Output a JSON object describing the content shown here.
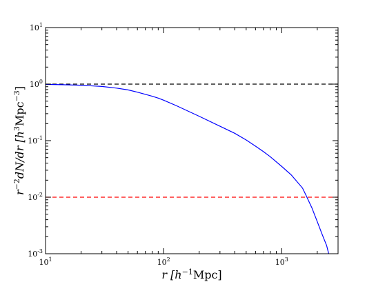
{
  "chart_data": {
    "type": "line",
    "xlabel": {
      "main": "r [h",
      "sup": "−1",
      "tail": "Mpc]"
    },
    "ylabel": {
      "main": "r",
      "sup1": "−2",
      "mid": "dN/dr [h",
      "sup2": "3",
      "mid2": "Mpc",
      "sup3": "−3",
      "tail": "]"
    },
    "xscale": "log",
    "yscale": "log",
    "xlim": [
      10,
      3000
    ],
    "ylim": [
      0.001,
      10
    ],
    "grid": false,
    "xticks": [
      {
        "value": 10,
        "base": "10",
        "exp": "1"
      },
      {
        "value": 100,
        "base": "10",
        "exp": "2"
      },
      {
        "value": 1000,
        "base": "10",
        "exp": "3"
      }
    ],
    "yticks": [
      {
        "value": 0.001,
        "base": "10",
        "exp": "-3"
      },
      {
        "value": 0.01,
        "base": "10",
        "exp": "-2"
      },
      {
        "value": 0.1,
        "base": "10",
        "exp": "-1"
      },
      {
        "value": 1,
        "base": "10",
        "exp": "0"
      },
      {
        "value": 10,
        "base": "10",
        "exp": "1"
      }
    ],
    "series": [
      {
        "color": "#0000ff",
        "style": "solid",
        "x": [
          10,
          14,
          20,
          30,
          40,
          50,
          60,
          70,
          80,
          90,
          100,
          130,
          200,
          300,
          400,
          500,
          600,
          700,
          800,
          1000,
          1200,
          1500,
          1600,
          1800,
          2000,
          2200,
          2400,
          2500
        ],
        "y": [
          0.99,
          0.975,
          0.955,
          0.91,
          0.85,
          0.79,
          0.72,
          0.66,
          0.61,
          0.565,
          0.52,
          0.41,
          0.27,
          0.18,
          0.135,
          0.103,
          0.08,
          0.064,
          0.052,
          0.035,
          0.025,
          0.0145,
          0.011,
          0.0065,
          0.0037,
          0.0022,
          0.0014,
          0.001
        ]
      }
    ],
    "hlines": [
      {
        "y": 1,
        "color": "#000000",
        "style": "dashed"
      },
      {
        "y": 0.01,
        "color": "#ff0000",
        "style": "dashed"
      }
    ]
  }
}
